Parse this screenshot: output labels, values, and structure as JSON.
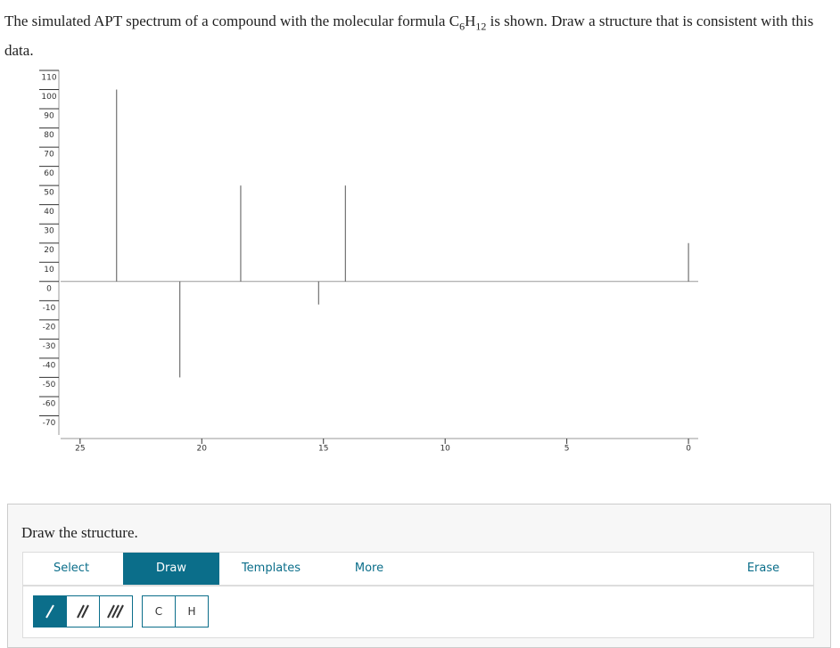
{
  "question": {
    "text_before": "The simulated APT spectrum of a compound with the molecular formula C",
    "sub_c": "6",
    "h": "H",
    "sub_h": "12",
    "text_after": " is shown. Draw a structure that is consistent with this data."
  },
  "spectrum": {
    "type": "line-spectrum",
    "x": [
      23.5,
      20.9,
      18.4,
      15.2,
      14.1,
      0
    ],
    "values": [
      100,
      -50,
      50,
      -12,
      50,
      20
    ],
    "color": "#555555",
    "xlim": [
      25.8,
      -0.4
    ],
    "xticks": [
      25,
      20,
      15,
      10,
      5,
      0
    ],
    "ylim": [
      -80,
      110
    ],
    "yticks": [
      110,
      100,
      90,
      80,
      70,
      60,
      50,
      40,
      30,
      20,
      10,
      0,
      -10,
      -20,
      -30,
      -40,
      -50,
      -60,
      -70
    ]
  },
  "panel": {
    "heading": "Draw the structure.",
    "tabs": [
      "Select",
      "Draw",
      "Templates",
      "More"
    ],
    "erase": "Erase",
    "atoms": [
      "C",
      "H"
    ]
  }
}
